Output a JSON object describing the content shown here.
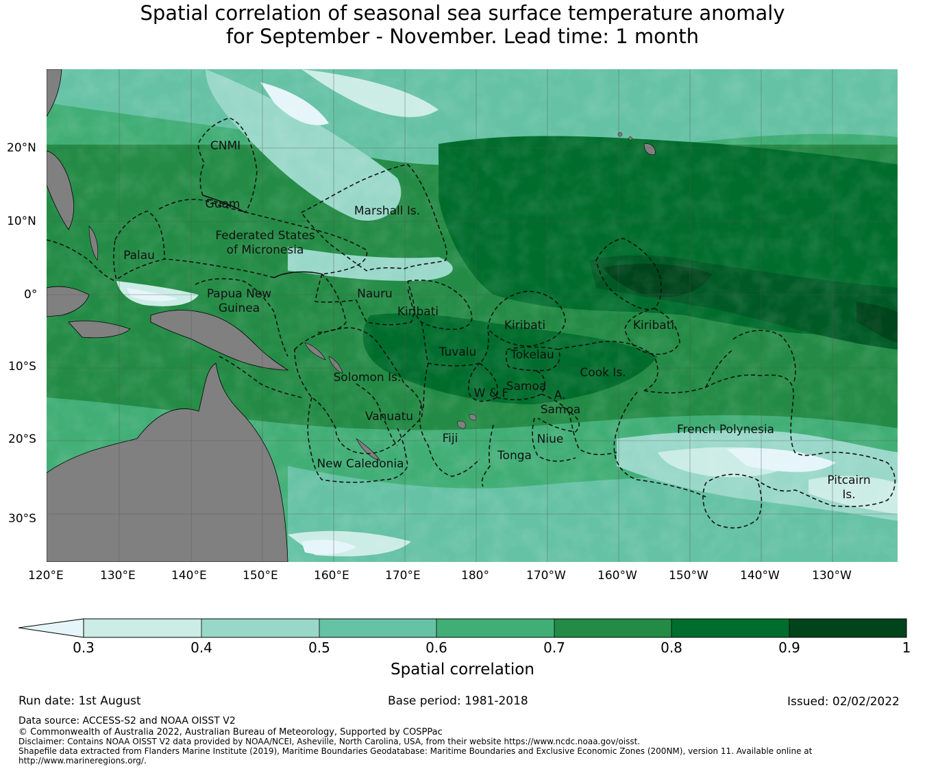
{
  "title_line1": "Spatial correlation of seasonal sea surface temperature anomaly",
  "title_line2": "for September - November. Lead time: 1 month",
  "map": {
    "lat_labels": [
      "20°N",
      "10°N",
      "0°",
      "10°S",
      "20°S",
      "30°S"
    ],
    "lon_labels": [
      "120°E",
      "130°E",
      "140°E",
      "150°E",
      "160°E",
      "170°E",
      "180°",
      "170°W",
      "160°W",
      "150°W",
      "140°W",
      "130°W"
    ],
    "regions": [
      "CNMI",
      "Guam",
      "Marshall Is.",
      "Federated States",
      "of Micronesia",
      "Palau",
      "Papua New",
      "Guinea",
      "Nauru",
      "Kiribati",
      "Kiribati",
      "Kiribati",
      "Tuvalu",
      "Tokelau",
      "Cook Is.",
      "Solomon Is.",
      "Samoa",
      "W & F",
      "A.",
      "Samoa",
      "Vanuatu",
      "Fiji",
      "Niue",
      "Tonga",
      "French Polynesia",
      "New Caledonia",
      "Pitcairn",
      "Is."
    ],
    "colors": {
      "land": "#808080",
      "ocean_low": "#e5f5f9",
      "ocean_high": "#00441b"
    }
  },
  "colorbar": {
    "ticks": [
      "0.3",
      "0.4",
      "0.5",
      "0.6",
      "0.7",
      "0.8",
      "0.9",
      "1"
    ],
    "colors": [
      "#ccece6",
      "#99d8c9",
      "#66c2a4",
      "#41ae76",
      "#238b45",
      "#006d2c",
      "#00441b"
    ],
    "extend_color": "#e5f5f9",
    "title": "Spatial correlation"
  },
  "footer": {
    "run_date": "Run date: 1st August",
    "base_period": "Base period: 1981-2018",
    "issued": "Issued: 02/02/2022",
    "data_source": "Data source: ACCESS-S2 and NOAA OISST V2",
    "copyright": "© Commonwealth of Australia 2022, Australian Bureau of Meteorology, Supported by COSPPac",
    "disclaimer": "Disclaimer: Contains NOAA OISST V2 data provided by NOAA/NCEI, Asheville, North Carolina, USA, from their website https://www.ncdc.noaa.gov/oisst.",
    "shapefile": "Shapefile data extracted from Flanders Marine Institute (2019), Maritime Boundaries Geodatabase: Maritime Boundaries and Exclusive Economic Zones (200NM), version 11. Available online at http://www.marineregions.org/."
  }
}
